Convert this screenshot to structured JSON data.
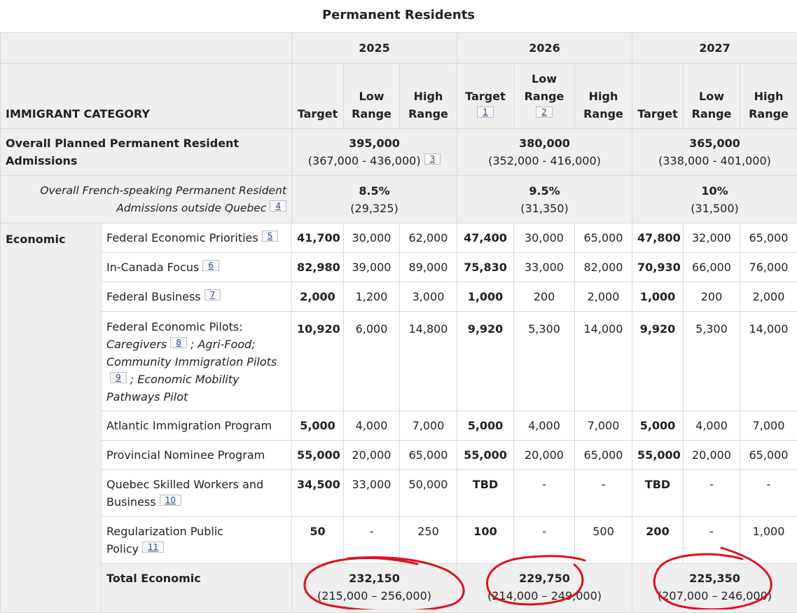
{
  "caption": "Permanent Residents",
  "years": [
    "2025",
    "2026",
    "2027"
  ],
  "headers": {
    "category": "IMMIGRANT CATEGORY",
    "target": "Target",
    "low_range": "Low Range",
    "high_range": "High Range"
  },
  "overall": {
    "label": "Overall Planned Permanent Resident Admissions",
    "values": [
      {
        "target": "395,000",
        "range": "(367,000 - 436,000)"
      },
      {
        "target": "380,000",
        "range": "(352,000 - 416,000)"
      },
      {
        "target": "365,000",
        "range": "(338,000 - 401,000)"
      }
    ]
  },
  "french": {
    "label": "Overall French-speaking Permanent Resident Admissions outside Quebec",
    "values": [
      {
        "pct": "8.5%",
        "count": "(29,325)"
      },
      {
        "pct": "9.5%",
        "count": "(31,350)"
      },
      {
        "pct": "10%",
        "count": "(31,500)"
      }
    ]
  },
  "economic_label": "Economic",
  "rows": [
    {
      "label": "Federal Economic Priorities",
      "values": [
        "41,700",
        "30,000",
        "62,000",
        "47,400",
        "30,000",
        "65,000",
        "47,800",
        "32,000",
        "65,000"
      ]
    },
    {
      "label": "In-Canada Focus",
      "values": [
        "82,980",
        "39,000",
        "89,000",
        "75,830",
        "33,000",
        "82,000",
        "70,930",
        "66,000",
        "76,000"
      ]
    },
    {
      "label": "Federal Business",
      "values": [
        "2,000",
        "1,200",
        "3,000",
        "1,000",
        "200",
        "2,000",
        "1,000",
        "200",
        "2,000"
      ]
    },
    {
      "label_parts": [
        "Federal Economic Pilots:",
        "Caregivers",
        "; Agri-Food; Community Immigration Pilots",
        "; Economic Mobility Pathways Pilot"
      ],
      "values": [
        "10,920",
        "6,000",
        "14,800",
        "9,920",
        "5,300",
        "14,000",
        "9,920",
        "5,300",
        "14,000"
      ]
    },
    {
      "label": "Atlantic Immigration Program",
      "values": [
        "5,000",
        "4,000",
        "7,000",
        "5,000",
        "4,000",
        "7,000",
        "5,000",
        "4,000",
        "7,000"
      ]
    },
    {
      "label": "Provincial Nominee Program",
      "values": [
        "55,000",
        "20,000",
        "65,000",
        "55,000",
        "20,000",
        "65,000",
        "55,000",
        "20,000",
        "65,000"
      ]
    },
    {
      "label": "Quebec Skilled Workers and Business",
      "values": [
        "34,500",
        "33,000",
        "50,000",
        "TBD",
        "-",
        "-",
        "TBD",
        "-",
        "-"
      ]
    },
    {
      "label": "Regularization Public Policy",
      "values": [
        "50",
        "-",
        "250",
        "100",
        "-",
        "500",
        "200",
        "-",
        "1,000"
      ]
    }
  ],
  "footnotes": [
    "1",
    "2",
    "3",
    "4",
    "5",
    "6",
    "7",
    "8",
    "9",
    "10",
    "11"
  ],
  "total": {
    "label": "Total Economic",
    "values": [
      {
        "target": "232,150",
        "range": "(215,000 – 256,000)"
      },
      {
        "target": "229,750",
        "range": "(214,000 – 249,000)"
      },
      {
        "target": "225,350",
        "range": "(207,000 – 246,000)"
      }
    ]
  },
  "annotation_color": "#e0101e"
}
